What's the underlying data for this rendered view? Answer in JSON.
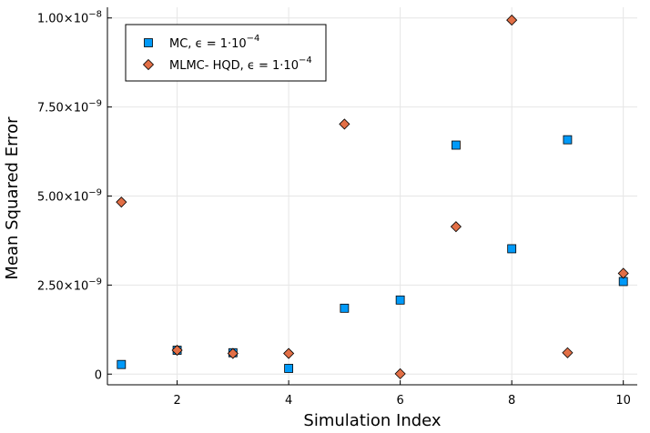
{
  "chart_data": {
    "type": "scatter",
    "xlabel": "Simulation Index",
    "ylabel": "Mean Squared Error",
    "xlim": [
      0.75,
      10.25
    ],
    "ylim": [
      -3e-10,
      1.03e-08
    ],
    "x_ticks": [
      2,
      4,
      6,
      8,
      10
    ],
    "x_tick_labels": [
      "2",
      "4",
      "6",
      "8",
      "10"
    ],
    "y_ticks": [
      0,
      2.5e-09,
      5e-09,
      7.5e-09,
      1e-08
    ],
    "y_tick_labels": [
      {
        "mantissa": "0",
        "exp": ""
      },
      {
        "mantissa": "2.50×10",
        "exp": "−9"
      },
      {
        "mantissa": "5.00×10",
        "exp": "−9"
      },
      {
        "mantissa": "7.50×10",
        "exp": "−9"
      },
      {
        "mantissa": "1.00×10",
        "exp": "−8"
      }
    ],
    "grid": true,
    "legend_position": "top-left",
    "series": [
      {
        "name": "MC, ϵ = 1·10",
        "name_exp": "−4",
        "marker": "square",
        "color": "#009AF9",
        "x": [
          1,
          2,
          3,
          4,
          5,
          6,
          7,
          8,
          9,
          10
        ],
        "y": [
          2.7e-10,
          6.7e-10,
          6e-10,
          1.6e-10,
          1.85e-09,
          2.08e-09,
          6.43e-09,
          3.52e-09,
          6.58e-09,
          2.6e-09
        ]
      },
      {
        "name": "MLMC- HQD, ϵ = 1·10",
        "name_exp": "−4",
        "marker": "diamond",
        "color": "#E26F46",
        "x": [
          1,
          2,
          3,
          4,
          5,
          6,
          7,
          8,
          9,
          10
        ],
        "y": [
          4.83e-09,
          6.7e-10,
          5.8e-10,
          5.8e-10,
          7.02e-09,
          1e-11,
          4.14e-09,
          9.94e-09,
          6e-10,
          2.83e-09
        ]
      }
    ]
  }
}
